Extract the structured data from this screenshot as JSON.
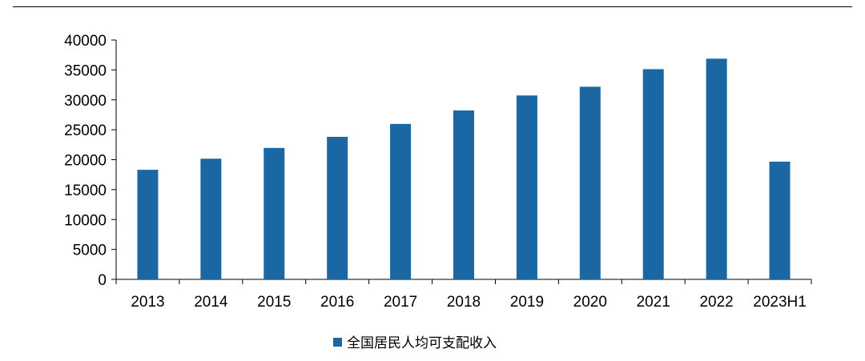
{
  "chart_data": {
    "type": "bar",
    "categories": [
      "2013",
      "2014",
      "2015",
      "2016",
      "2017",
      "2018",
      "2019",
      "2020",
      "2021",
      "2022",
      "2023H1"
    ],
    "series": [
      {
        "name": "全国居民人均可支配收入",
        "values": [
          18311,
          20167,
          21966,
          23821,
          25974,
          28228,
          30733,
          32189,
          35128,
          36883,
          19672
        ]
      }
    ],
    "ylim": [
      0,
      40000
    ],
    "yticks": [
      0,
      5000,
      10000,
      15000,
      20000,
      25000,
      30000,
      35000,
      40000
    ],
    "grid": false,
    "legend_position": "bottom-center",
    "bar_color": "#1a67a4"
  }
}
